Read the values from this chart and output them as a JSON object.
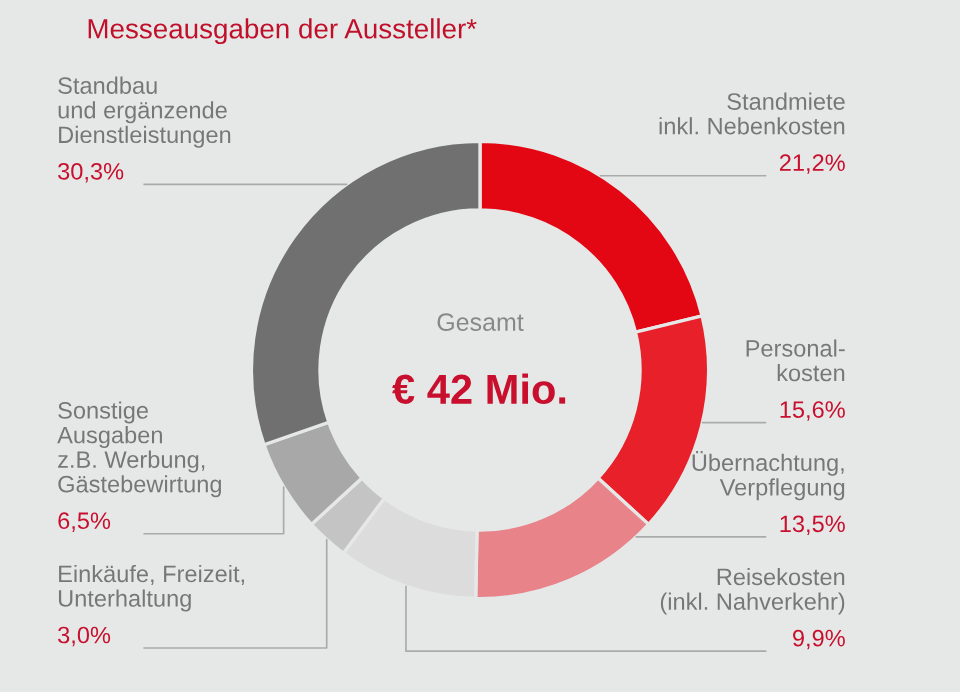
{
  "chart_data": {
    "type": "donut",
    "title": "Messeausgaben der Aussteller*",
    "categories": [
      "Standmiete\ninkl. Nebenkosten",
      "Personal-\nkosten",
      "Übernachtung,\nVerpflegung",
      "Reisekosten\n(inkl. Nahverkehr)",
      "Einkäufe, Freizeit,\nUnterhaltung",
      "Sonstige\nAusgaben\nz.B. Werbung,\nGästebewirtung",
      "Standbau\nund ergänzende\nDienstleistungen"
    ],
    "values": [
      21.2,
      15.6,
      13.5,
      9.9,
      3.0,
      6.5,
      30.3
    ],
    "value_labels": [
      "21,2%",
      "15,6%",
      "13,5%",
      "9,9%",
      "3,0%",
      "6,5%",
      "30,3%"
    ],
    "colors": [
      "#e30613",
      "#e8202a",
      "#e8838a",
      "#dcdcdc",
      "#c4c4c4",
      "#a8a8a8",
      "#707070"
    ],
    "annotations": [
      "Gesamt",
      "€ 42 Mio."
    ]
  }
}
